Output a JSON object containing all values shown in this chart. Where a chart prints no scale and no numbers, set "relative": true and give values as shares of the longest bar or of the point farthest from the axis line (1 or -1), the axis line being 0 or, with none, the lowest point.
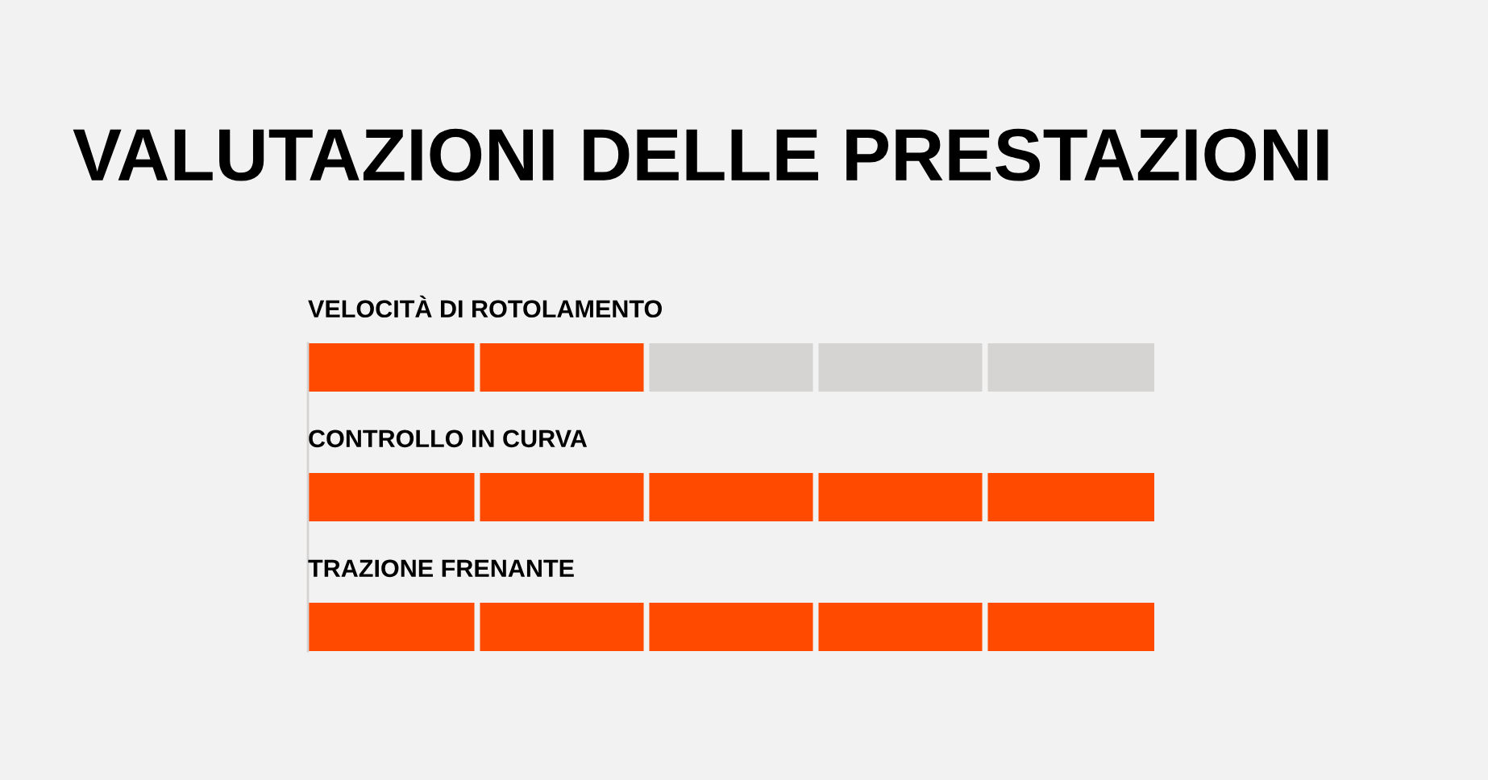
{
  "chart_data": {
    "type": "bar",
    "orientation": "horizontal",
    "stacked": true,
    "relative": true,
    "title": "VALUTAZIONI DELLE PRESTAZIONI",
    "categories": [
      "VELOCITÀ DI ROTOLAMENTO",
      "CONTROLLO IN CURVA",
      "TRAZIONE FRENANTE"
    ],
    "series": [
      {
        "color": "#ff4a00",
        "values": [
          0.4,
          1,
          1
        ]
      },
      {
        "color": "#d6d4d2",
        "values": [
          0.6,
          0,
          0
        ]
      }
    ]
  }
}
